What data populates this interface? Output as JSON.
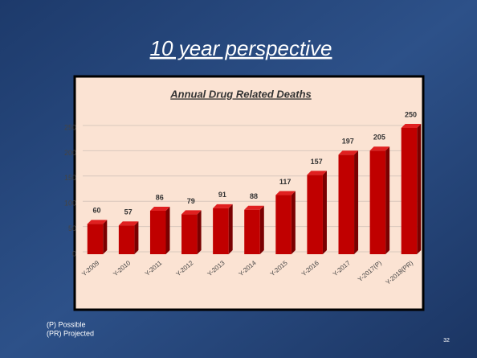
{
  "slide": {
    "title": "10 year perspective",
    "notes": [
      "(P) Possible",
      "(PR) Projected"
    ],
    "number": "32"
  },
  "chart_data": {
    "type": "bar3d",
    "title": "Annual Drug Related Deaths",
    "categories": [
      "Y-2009",
      "Y-2010",
      "Y-2011",
      "Y-2012",
      "Y-2013",
      "Y-2014",
      "Y-2015",
      "Y-2016",
      "Y-2017",
      "Y-2017(P)",
      "Y-2018(PR)"
    ],
    "values": [
      60,
      57,
      86,
      79,
      91,
      88,
      117,
      157,
      197,
      205,
      250
    ],
    "color": "#c00000",
    "ylim": [
      0,
      250
    ],
    "yticks": [
      0,
      50,
      100,
      150,
      200,
      250
    ],
    "grid": true
  }
}
